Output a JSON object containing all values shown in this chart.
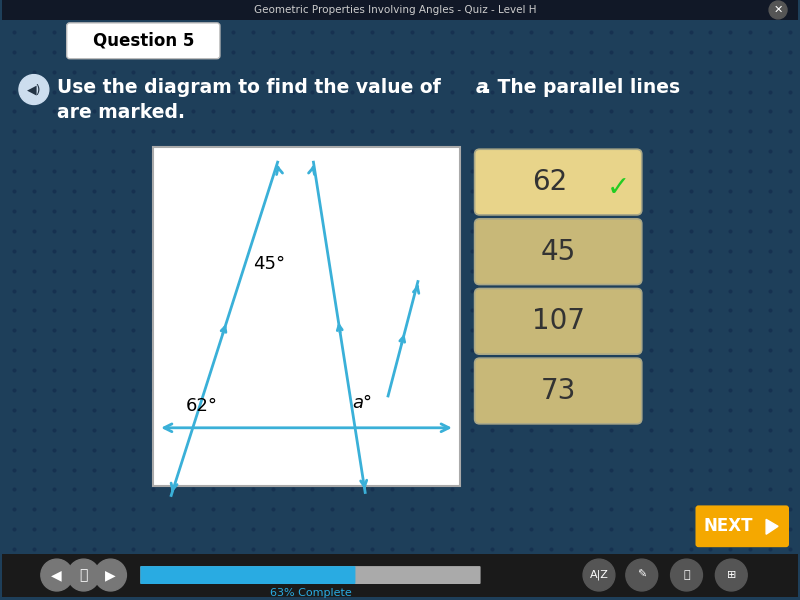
{
  "title": "Geometric Properties Involving Angles - Quiz - Level H",
  "question_label": "Question 5",
  "bg_color": "#1e3f5a",
  "dot_color": "#1a3650",
  "diagram_bg": "#ffffff",
  "angle_label_45": "45°",
  "angle_label_62": "62°",
  "angle_label_a": "a°",
  "line_color": "#3ab0d8",
  "answer_options": [
    "62",
    "45",
    "107",
    "73"
  ],
  "correct_answer": "62",
  "correct_answer_bg": "#e8d48a",
  "other_answer_bg": "#c8b878",
  "checkmark_color": "#22cc22",
  "next_btn_color": "#f5a800",
  "next_btn_text": "NEXT",
  "progress_pct": "63% Complete",
  "progress_bar_color": "#29abe2",
  "progress_bar_bg": "#888888",
  "bottom_bar_color": "#1a1a1a"
}
